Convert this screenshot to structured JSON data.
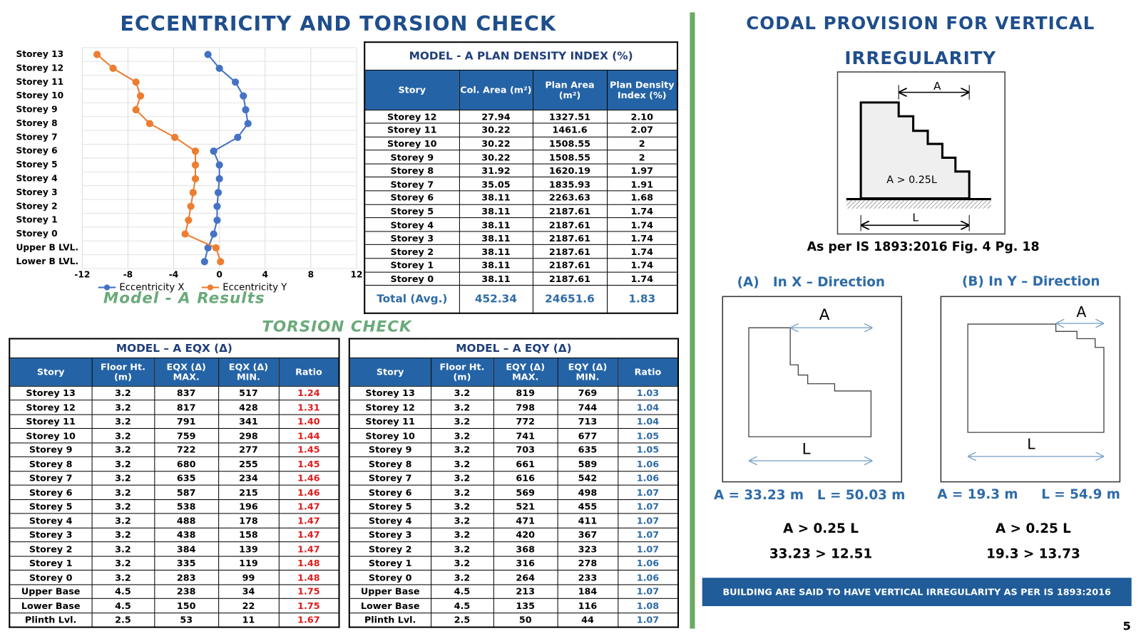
{
  "title": "ECCENTRICITY AND TORSION CHECK",
  "chart_data": {
    "type": "line",
    "orientation": "horizontal",
    "caption": "Model - A Results",
    "categories": [
      "Storey 13",
      "Storey 12",
      "Storey 11",
      "Storey 10",
      "Storey 9",
      "Storey 8",
      "Storey 7",
      "Storey 6",
      "Storey 5",
      "Storey 4",
      "Storey 3",
      "Storey 2",
      "Storey 1",
      "Storey 0",
      "Upper B LVL.",
      "Lower B LVL."
    ],
    "series": [
      {
        "name": "Eccentricity X",
        "color": "#4472c4",
        "values": [
          -1.0,
          0.0,
          1.4,
          2.1,
          2.3,
          2.5,
          1.6,
          -0.5,
          0.0,
          0.0,
          -0.1,
          -0.2,
          -0.2,
          -0.5,
          -1.0,
          -1.3
        ]
      },
      {
        "name": "Eccentricity Y",
        "color": "#ed7d31",
        "values": [
          -10.7,
          -9.3,
          -7.3,
          -6.9,
          -7.3,
          -6.1,
          -3.9,
          -2.1,
          -2.1,
          -2.1,
          -2.3,
          -2.5,
          -2.7,
          -3.0,
          -0.3,
          0.1
        ]
      }
    ],
    "xlim": [
      -12,
      12
    ],
    "xticks": [
      -12,
      -8,
      -4,
      0,
      4,
      8,
      12
    ],
    "grid": true,
    "legend": "bottom"
  },
  "plan_density_table": {
    "title": "MODEL - A PLAN DENSITY INDEX (%)",
    "header": [
      "Story",
      "Col. Area (m²)",
      "Plan Area (m²)",
      "Plan Density Index (%)"
    ],
    "rows": [
      [
        "Storey 12",
        "27.94",
        "1327.51",
        "2.10"
      ],
      [
        "Storey 11",
        "30.22",
        "1461.6",
        "2.07"
      ],
      [
        "Storey 10",
        "30.22",
        "1508.55",
        "2"
      ],
      [
        "Storey 9",
        "30.22",
        "1508.55",
        "2"
      ],
      [
        "Storey 8",
        "31.92",
        "1620.19",
        "1.97"
      ],
      [
        "Storey 7",
        "35.05",
        "1835.93",
        "1.91"
      ],
      [
        "Storey 6",
        "38.11",
        "2263.63",
        "1.68"
      ],
      [
        "Storey 5",
        "38.11",
        "2187.61",
        "1.74"
      ],
      [
        "Storey 4",
        "38.11",
        "2187.61",
        "1.74"
      ],
      [
        "Storey 3",
        "38.11",
        "2187.61",
        "1.74"
      ],
      [
        "Storey 2",
        "38.11",
        "2187.61",
        "1.74"
      ],
      [
        "Storey 1",
        "38.11",
        "2187.61",
        "1.74"
      ],
      [
        "Storey 0",
        "38.11",
        "2187.61",
        "1.74"
      ]
    ],
    "total": [
      "Total (Avg.)",
      "452.34",
      "24651.6",
      "1.83"
    ]
  },
  "torsion_title": "TORSION CHECK",
  "eqx_table": {
    "title": "MODEL – A EQX (Δ)",
    "ratio_color": "#e01b1b",
    "header": [
      "Story",
      "Floor Ht. (m)",
      "EQX (Δ) MAX.",
      "EQX (Δ) MIN.",
      "Ratio"
    ],
    "rows": [
      [
        "Storey 13",
        "3.2",
        "837",
        "517",
        "1.24"
      ],
      [
        "Storey 12",
        "3.2",
        "817",
        "428",
        "1.31"
      ],
      [
        "Storey 11",
        "3.2",
        "791",
        "341",
        "1.40"
      ],
      [
        "Storey 10",
        "3.2",
        "759",
        "298",
        "1.44"
      ],
      [
        "Storey 9",
        "3.2",
        "722",
        "277",
        "1.45"
      ],
      [
        "Storey 8",
        "3.2",
        "680",
        "255",
        "1.45"
      ],
      [
        "Storey 7",
        "3.2",
        "635",
        "234",
        "1.46"
      ],
      [
        "Storey 6",
        "3.2",
        "587",
        "215",
        "1.46"
      ],
      [
        "Storey 5",
        "3.2",
        "538",
        "196",
        "1.47"
      ],
      [
        "Storey 4",
        "3.2",
        "488",
        "178",
        "1.47"
      ],
      [
        "Storey 3",
        "3.2",
        "438",
        "158",
        "1.47"
      ],
      [
        "Storey 2",
        "3.2",
        "384",
        "139",
        "1.47"
      ],
      [
        "Storey 1",
        "3.2",
        "335",
        "119",
        "1.48"
      ],
      [
        "Storey 0",
        "3.2",
        "283",
        "99",
        "1.48"
      ],
      [
        "Upper Base",
        "4.5",
        "238",
        "34",
        "1.75"
      ],
      [
        "Lower Base",
        "4.5",
        "150",
        "22",
        "1.75"
      ],
      [
        "Plinth Lvl.",
        "2.5",
        "53",
        "11",
        "1.67"
      ]
    ]
  },
  "eqy_table": {
    "title": "MODEL – A EQY (Δ)",
    "ratio_color": "#2e6ba8",
    "header": [
      "Story",
      "Floor Ht. (m)",
      "EQY (Δ) MAX.",
      "EQY (Δ) MIN.",
      "Ratio"
    ],
    "rows": [
      [
        "Storey 13",
        "3.2",
        "819",
        "769",
        "1.03"
      ],
      [
        "Storey 12",
        "3.2",
        "798",
        "744",
        "1.04"
      ],
      [
        "Storey 11",
        "3.2",
        "772",
        "713",
        "1.04"
      ],
      [
        "Storey 10",
        "3.2",
        "741",
        "677",
        "1.05"
      ],
      [
        "Storey 9",
        "3.2",
        "703",
        "635",
        "1.05"
      ],
      [
        "Storey 8",
        "3.2",
        "661",
        "589",
        "1.06"
      ],
      [
        "Storey 7",
        "3.2",
        "616",
        "542",
        "1.06"
      ],
      [
        "Storey 6",
        "3.2",
        "569",
        "498",
        "1.07"
      ],
      [
        "Storey 5",
        "3.2",
        "521",
        "455",
        "1.07"
      ],
      [
        "Storey 4",
        "3.2",
        "471",
        "411",
        "1.07"
      ],
      [
        "Storey 3",
        "3.2",
        "420",
        "367",
        "1.07"
      ],
      [
        "Storey 2",
        "3.2",
        "368",
        "323",
        "1.07"
      ],
      [
        "Storey 1",
        "3.2",
        "316",
        "278",
        "1.06"
      ],
      [
        "Storey 0",
        "3.2",
        "264",
        "233",
        "1.06"
      ],
      [
        "Upper Base",
        "4.5",
        "213",
        "184",
        "1.07"
      ],
      [
        "Lower Base",
        "4.5",
        "135",
        "116",
        "1.08"
      ],
      [
        "Plinth Lvl.",
        "2.5",
        "50",
        "44",
        "1.07"
      ]
    ]
  },
  "codal": {
    "title": "CODAL PROVISION FOR VERTICAL IRREGULARITY",
    "figure": {
      "a": "A",
      "l": "L",
      "condition": "A > 0.25L",
      "caption": "As per IS 1893:2016 Fig. 4 Pg. 18"
    },
    "x_direction": {
      "heading": "(A)   In X – Direction",
      "a": "A",
      "l": "L",
      "a_value": "A = 33.23 m",
      "l_value": "L = 50.03 m",
      "rule": "A > 0.25 L",
      "check": "33.23 > 12.51"
    },
    "y_direction": {
      "heading": "(B) In Y – Direction",
      "a": "A",
      "l": "L",
      "a_value": "A = 19.3 m",
      "l_value": "L = 54.9 m",
      "rule": "A > 0.25 L",
      "check": "19.3 > 13.73"
    },
    "conclusion": "BUILDING ARE SAID TO HAVE VERTICAL IRREGULARITY AS PER IS 1893:2016"
  },
  "page_number": "5"
}
